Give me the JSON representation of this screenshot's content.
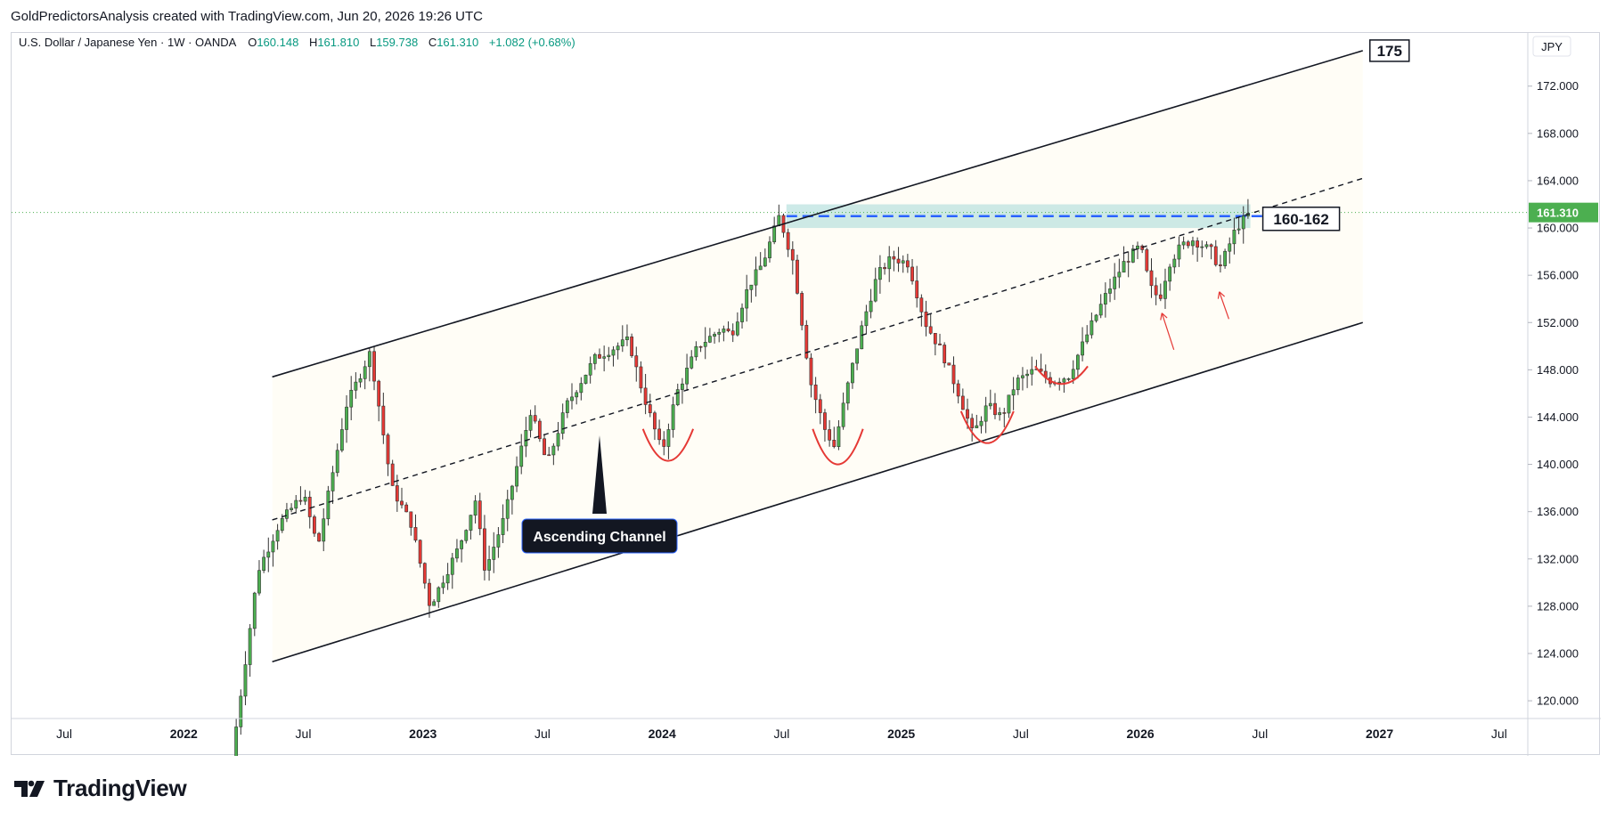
{
  "caption": "GoldPredictorsAnalysis created with TradingView.com, Jun 20, 2026 19:26 UTC",
  "brand": {
    "logo_text": "TradingView",
    "icon": "tradingview-logo-icon"
  },
  "colors": {
    "up": "#4caf50",
    "down": "#e53935",
    "last_price_bg": "#4caf50",
    "dashed_level": "#2962ff",
    "zone_fill": "#b2dfdb",
    "arc": "#e53935",
    "channel_fill": "#fffdf6"
  },
  "chart_data": {
    "type": "candlestick",
    "symbol": "U.S. Dollar / Japanese Yen",
    "interval": "1W",
    "exchange": "OANDA",
    "currency": "JPY",
    "ohlc_header": {
      "o_label": "O",
      "open": "160.148",
      "h_label": "H",
      "high": "161.810",
      "l_label": "L",
      "low": "159.738",
      "c_label": "C",
      "close": "161.310",
      "change": "+1.082 (+0.68%)"
    },
    "last_price": "161.310",
    "ylim": [
      118.5,
      176.5
    ],
    "y_ticks": [
      "120.000",
      "124.000",
      "128.000",
      "132.000",
      "136.000",
      "140.000",
      "144.000",
      "148.000",
      "152.000",
      "156.000",
      "160.000",
      "164.000",
      "168.000",
      "172.000"
    ],
    "x_ticks": [
      {
        "label": "Jul",
        "t": 2021.5
      },
      {
        "label": "2022",
        "t": 2022.0
      },
      {
        "label": "Jul",
        "t": 2022.5
      },
      {
        "label": "2023",
        "t": 2023.0
      },
      {
        "label": "Jul",
        "t": 2023.5
      },
      {
        "label": "2024",
        "t": 2024.0
      },
      {
        "label": "Jul",
        "t": 2024.5
      },
      {
        "label": "2025",
        "t": 2025.0
      },
      {
        "label": "Jul",
        "t": 2025.5
      },
      {
        "label": "2026",
        "t": 2026.0
      },
      {
        "label": "Jul",
        "t": 2026.5
      },
      {
        "label": "2027",
        "t": 2027.0
      },
      {
        "label": "Jul",
        "t": 2027.5
      }
    ],
    "price_path": [
      [
        2022.2,
        115.0
      ],
      [
        2022.31,
        131.0
      ],
      [
        2022.4,
        135.0
      ],
      [
        2022.5,
        137.5
      ],
      [
        2022.56,
        133.0
      ],
      [
        2022.62,
        139.0
      ],
      [
        2022.68,
        145.0
      ],
      [
        2022.78,
        149.5
      ],
      [
        2022.87,
        138.0
      ],
      [
        2022.95,
        135.0
      ],
      [
        2023.03,
        128.0
      ],
      [
        2023.15,
        133.0
      ],
      [
        2023.22,
        137.0
      ],
      [
        2023.26,
        131.0
      ],
      [
        2023.34,
        135.5
      ],
      [
        2023.45,
        144.5
      ],
      [
        2023.52,
        140.0
      ],
      [
        2023.6,
        145.0
      ],
      [
        2023.72,
        149.0
      ],
      [
        2023.86,
        150.5
      ],
      [
        2023.92,
        146.0
      ],
      [
        2024.0,
        141.0
      ],
      [
        2024.06,
        146.0
      ],
      [
        2024.15,
        150.0
      ],
      [
        2024.25,
        151.5
      ],
      [
        2024.29,
        151.0
      ],
      [
        2024.36,
        155.0
      ],
      [
        2024.42,
        157.0
      ],
      [
        2024.49,
        161.0
      ],
      [
        2024.55,
        157.0
      ],
      [
        2024.62,
        147.0
      ],
      [
        2024.68,
        143.0
      ],
      [
        2024.72,
        141.5
      ],
      [
        2024.78,
        147.0
      ],
      [
        2024.84,
        152.0
      ],
      [
        2024.9,
        156.0
      ],
      [
        2024.96,
        157.5
      ],
      [
        2025.03,
        157.0
      ],
      [
        2025.1,
        152.0
      ],
      [
        2025.17,
        149.5
      ],
      [
        2025.24,
        146.0
      ],
      [
        2025.3,
        142.5
      ],
      [
        2025.36,
        145.0
      ],
      [
        2025.42,
        144.0
      ],
      [
        2025.48,
        147.0
      ],
      [
        2025.56,
        148.0
      ],
      [
        2025.63,
        147.0
      ],
      [
        2025.7,
        147.5
      ],
      [
        2025.8,
        152.0
      ],
      [
        2025.86,
        154.5
      ],
      [
        2025.93,
        157.0
      ],
      [
        2026.0,
        158.5
      ],
      [
        2026.04,
        155.0
      ],
      [
        2026.08,
        154.0
      ],
      [
        2026.12,
        157.0
      ],
      [
        2026.17,
        158.5
      ],
      [
        2026.22,
        159.0
      ],
      [
        2026.3,
        158.0
      ],
      [
        2026.33,
        156.5
      ],
      [
        2026.4,
        160.0
      ],
      [
        2026.46,
        161.31
      ]
    ],
    "channel": {
      "upper": [
        [
          2022.37,
          147.4
        ],
        [
          2026.93,
          175.0
        ]
      ],
      "lower": [
        [
          2022.37,
          123.3
        ],
        [
          2026.93,
          152.0
        ]
      ],
      "median": [
        [
          2022.37,
          135.3
        ],
        [
          2026.93,
          164.2
        ]
      ]
    },
    "resistance_zone": {
      "label": "160-162",
      "from": 160.0,
      "to": 162.0,
      "level": 161.0,
      "t_start": 2024.52,
      "t_end": 2026.46
    },
    "target_label": "175",
    "annotation": "Ascending Channel",
    "bottom_arcs": [
      {
        "t_start": 2023.92,
        "t_end": 2024.13,
        "price_top": 143.0,
        "price_bottom": 140.3
      },
      {
        "t_start": 2024.63,
        "t_end": 2024.84,
        "price_top": 143.0,
        "price_bottom": 140.0
      },
      {
        "t_start": 2025.25,
        "t_end": 2025.47,
        "price_top": 144.5,
        "price_bottom": 141.8
      },
      {
        "t_start": 2025.56,
        "t_end": 2025.78,
        "price_top": 148.3,
        "price_bottom": 146.8
      }
    ],
    "arrows": [
      {
        "t_from": 2026.14,
        "p_from": 149.7,
        "t_to": 2026.09,
        "p_to": 152.8
      },
      {
        "t_from": 2026.37,
        "p_from": 152.3,
        "t_to": 2026.33,
        "p_to": 154.6
      }
    ]
  }
}
